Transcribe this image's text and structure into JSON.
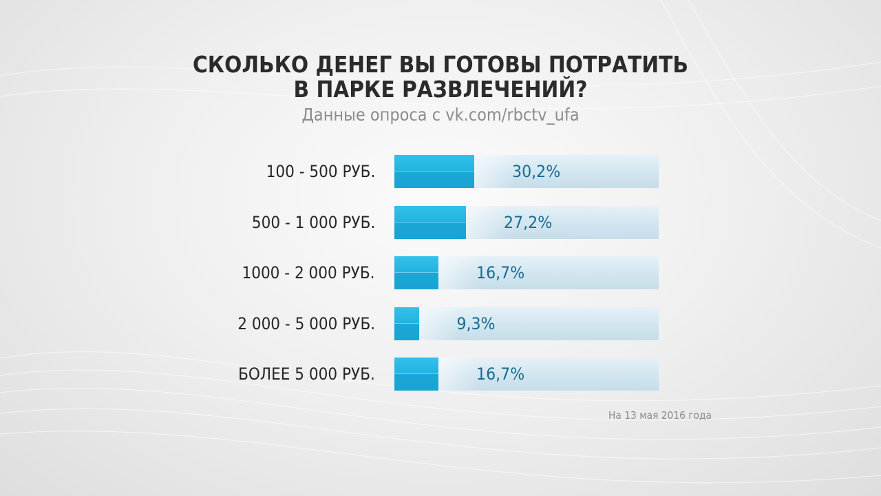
{
  "chart_data": {
    "type": "bar",
    "orientation": "horizontal",
    "title_lines": [
      "СКОЛЬКО ДЕНЕГ ВЫ ГОТОВЫ ПОТРАТИТЬ",
      "В ПАРКЕ РАЗВЛЕЧЕНИЙ?"
    ],
    "subtitle": "Данные опроса с vk.com/rbctv_ufa",
    "categories": [
      "100 - 500 РУБ.",
      "500 - 1 000 РУБ.",
      "1000 - 2 000 РУБ.",
      "2 000 - 5 000 РУБ.",
      "БОЛЕЕ 5 000 РУБ."
    ],
    "values": [
      30.2,
      27.2,
      16.7,
      9.3,
      16.7
    ],
    "value_labels": [
      "30,2%",
      "27,2%",
      "16,7%",
      "9,3%",
      "16,7%"
    ],
    "xlim": [
      0,
      100
    ],
    "grid": false,
    "colors": {
      "bar": "#1fb0de",
      "track": "#d3e6f0",
      "value_text": "#156c8f"
    }
  },
  "footnote": "На 13 мая 2016 года"
}
